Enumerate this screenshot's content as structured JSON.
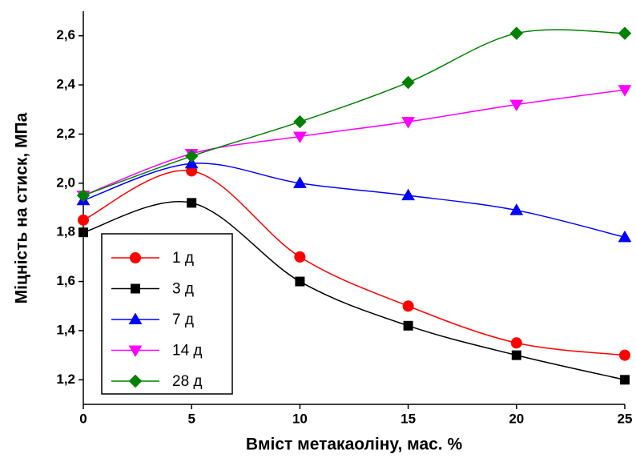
{
  "chart_data": {
    "type": "line",
    "x_label": "Вміст метакаоліну, мас. %",
    "y_label": "Міцність на стиск, МПа",
    "x": [
      0,
      5,
      10,
      15,
      20,
      25
    ],
    "xlim": [
      0,
      25
    ],
    "xticks": [
      0,
      5,
      10,
      15,
      20,
      25
    ],
    "ylim": [
      1.1,
      2.7
    ],
    "yticks": [
      {
        "value": 1.2,
        "label": "1,2"
      },
      {
        "value": 1.4,
        "label": "1,4"
      },
      {
        "value": 1.6,
        "label": "1,6"
      },
      {
        "value": 1.8,
        "label": "1,8"
      },
      {
        "value": 2.0,
        "label": "2,0"
      },
      {
        "value": 2.2,
        "label": "2,2"
      },
      {
        "value": 2.4,
        "label": "2,4"
      },
      {
        "value": 2.6,
        "label": "2,6"
      }
    ],
    "smooth": true,
    "legend": "lower-left",
    "series": [
      {
        "name": "1 д",
        "color": "#ff0000",
        "marker": "circle",
        "values": [
          1.85,
          2.05,
          1.7,
          1.5,
          1.35,
          1.3
        ]
      },
      {
        "name": "3 д",
        "color": "#000000",
        "marker": "square",
        "values": [
          1.8,
          1.92,
          1.6,
          1.42,
          1.3,
          1.2
        ]
      },
      {
        "name": "7 д",
        "color": "#0000ff",
        "marker": "triangle-up",
        "values": [
          1.93,
          2.08,
          2.0,
          1.95,
          1.89,
          1.78
        ]
      },
      {
        "name": "14 д",
        "color": "#ff00ff",
        "marker": "triangle-down",
        "values": [
          1.95,
          2.12,
          2.19,
          2.25,
          2.32,
          2.38
        ]
      },
      {
        "name": "28 д",
        "color": "#008000",
        "marker": "diamond",
        "values": [
          1.95,
          2.11,
          2.25,
          2.41,
          2.61,
          2.61
        ]
      }
    ]
  }
}
